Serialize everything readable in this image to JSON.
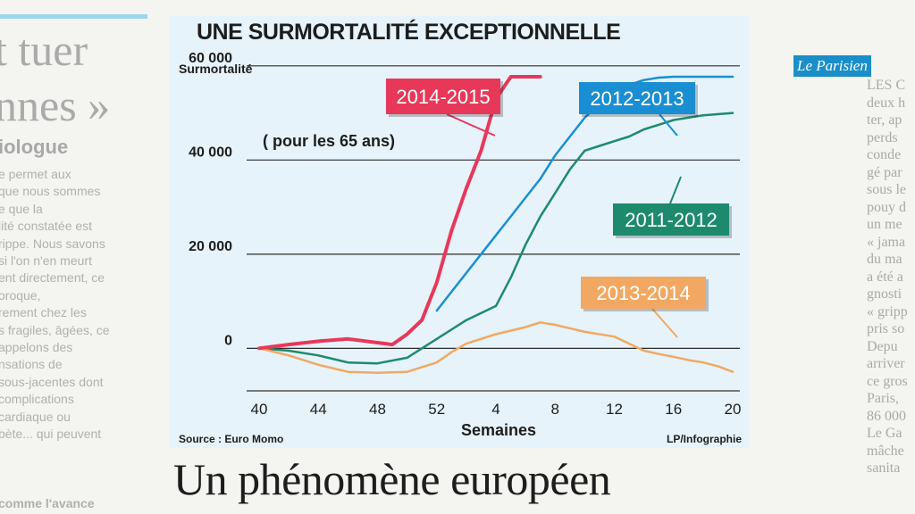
{
  "left_column": {
    "big_lines": [
      "t tuer",
      "nnes »"
    ],
    "subhead": "iologue",
    "body_lines": [
      "e permet aux",
      " que nous sommes",
      "e que la",
      "lité constatée est",
      "rippe. Nous savons",
      "si l'on n'en meurt",
      "ent directement, ce",
      "oroque,",
      "rement chez les",
      "s fragiles, âgées, ce",
      " appelons des",
      "nsations de",
      "sous-jacentes dont",
      " complications",
      "cardiaque ou",
      "bète... qui peuvent"
    ],
    "foot": "comme l'avance"
  },
  "right_column": {
    "logo": "Le Parisien",
    "lines": [
      "LES C",
      "deux h",
      "ter, ap",
      "perds",
      "conde",
      "gé par",
      "sous le",
      "pouy d",
      "un me",
      "« jama",
      "du ma",
      "a été a",
      "gnosti",
      "« gripp",
      "pris so",
      "  Depu",
      "arriver",
      "ce gros",
      "Paris, ",
      "86 000",
      "Le Ga",
      "mâche",
      "sanita"
    ]
  },
  "headline": "Un phénomène européen",
  "colors": {
    "panel_bg": "#e6f3fa",
    "s2014_2015": "#e8385a",
    "s2012_2013": "#1a8ed2",
    "s2011_2012": "#1d8a6e",
    "s2013_2014": "#f2a862",
    "gridline": "#2b2b2b"
  },
  "chart_data": {
    "type": "line",
    "title": "UNE SURMORTALITÉ EXCEPTIONNELLE",
    "ylabel": "Surmortalité",
    "subtitle": "( pour les 65 ans)",
    "xlabel": "Semaines",
    "source": "Source : Euro Momo",
    "credit": "LP/Infographie",
    "x_ticks": [
      "40",
      "44",
      "48",
      "52",
      "4",
      "8",
      "12",
      "16",
      "20"
    ],
    "y_ticks": [
      "60 000",
      "40 000",
      "20 000",
      "0"
    ],
    "y_tick_values": [
      60000,
      40000,
      20000,
      0
    ],
    "ylim": [
      -6000,
      63000
    ],
    "x_categories": [
      "40",
      "41",
      "42",
      "43",
      "44",
      "45",
      "46",
      "47",
      "48",
      "49",
      "50",
      "51",
      "52",
      "1",
      "2",
      "3",
      "4",
      "5",
      "6",
      "7",
      "8",
      "9",
      "10",
      "11",
      "12",
      "13",
      "14",
      "15",
      "16",
      "17",
      "18",
      "19",
      "20"
    ],
    "series": [
      {
        "name": "2014-2015",
        "color_key": "s2014_2015",
        "stroke": 4,
        "label_bg": "#e8385a",
        "points": [
          [
            0,
            0
          ],
          [
            2,
            800
          ],
          [
            4,
            1500
          ],
          [
            6,
            2000
          ],
          [
            8,
            1200
          ],
          [
            9,
            800
          ],
          [
            10,
            3000
          ],
          [
            11,
            6000
          ],
          [
            12,
            14000
          ],
          [
            13,
            25000
          ],
          [
            14,
            34000
          ],
          [
            15,
            42000
          ],
          [
            16,
            53000
          ],
          [
            17,
            63000
          ],
          [
            18,
            72000
          ],
          [
            19,
            74000
          ]
        ]
      },
      {
        "name": "2012-2013",
        "color_key": "s2012_2013",
        "stroke": 2.5,
        "label_bg": "#1a8ed2",
        "points": [
          [
            12,
            8000
          ],
          [
            13,
            12000
          ],
          [
            14,
            16000
          ],
          [
            15,
            20000
          ],
          [
            16,
            24000
          ],
          [
            17,
            28000
          ],
          [
            18,
            32000
          ],
          [
            19,
            36000
          ],
          [
            20,
            41000
          ],
          [
            21,
            45000
          ],
          [
            22,
            49000
          ],
          [
            23,
            52000
          ],
          [
            24,
            55000
          ],
          [
            25,
            56000
          ],
          [
            26,
            57000
          ],
          [
            27,
            57500
          ],
          [
            28,
            58000
          ],
          [
            29,
            58500
          ],
          [
            30,
            58700
          ],
          [
            31,
            59000
          ],
          [
            32,
            59200
          ]
        ]
      },
      {
        "name": "2011-2012",
        "color_key": "s2011_2012",
        "stroke": 2.5,
        "label_bg": "#1d8a6e",
        "points": [
          [
            0,
            0
          ],
          [
            2,
            -500
          ],
          [
            4,
            -1500
          ],
          [
            6,
            -3000
          ],
          [
            8,
            -3200
          ],
          [
            10,
            -2000
          ],
          [
            12,
            2000
          ],
          [
            14,
            6000
          ],
          [
            16,
            9000
          ],
          [
            17,
            15000
          ],
          [
            18,
            22000
          ],
          [
            19,
            28000
          ],
          [
            20,
            33000
          ],
          [
            21,
            38000
          ],
          [
            22,
            42000
          ],
          [
            23,
            43000
          ],
          [
            24,
            44000
          ],
          [
            25,
            45000
          ],
          [
            26,
            46500
          ],
          [
            27,
            47500
          ],
          [
            28,
            48500
          ],
          [
            30,
            49500
          ],
          [
            32,
            50000
          ]
        ]
      },
      {
        "name": "2013-2014",
        "color_key": "s2013_2014",
        "stroke": 2.5,
        "label_bg": "#f2a862",
        "points": [
          [
            0,
            0
          ],
          [
            2,
            -1500
          ],
          [
            4,
            -3500
          ],
          [
            6,
            -5000
          ],
          [
            8,
            -5200
          ],
          [
            10,
            -5000
          ],
          [
            12,
            -3000
          ],
          [
            13,
            -800
          ],
          [
            14,
            1000
          ],
          [
            16,
            3000
          ],
          [
            18,
            4500
          ],
          [
            19,
            5500
          ],
          [
            20,
            5000
          ],
          [
            22,
            3500
          ],
          [
            24,
            2500
          ],
          [
            25,
            1000
          ],
          [
            26,
            -500
          ],
          [
            27,
            -1200
          ],
          [
            28,
            -1800
          ],
          [
            29,
            -2500
          ],
          [
            30,
            -3000
          ],
          [
            31,
            -3800
          ],
          [
            32,
            -5000
          ]
        ]
      }
    ],
    "legend_labels": [
      {
        "name": "2014-2015",
        "color_key": "s2014_2015"
      },
      {
        "name": "2012-2013",
        "color_key": "s2012_2013"
      },
      {
        "name": "2011-2012",
        "color_key": "s2011_2012"
      },
      {
        "name": "2013-2014",
        "color_key": "s2013_2014"
      }
    ]
  }
}
